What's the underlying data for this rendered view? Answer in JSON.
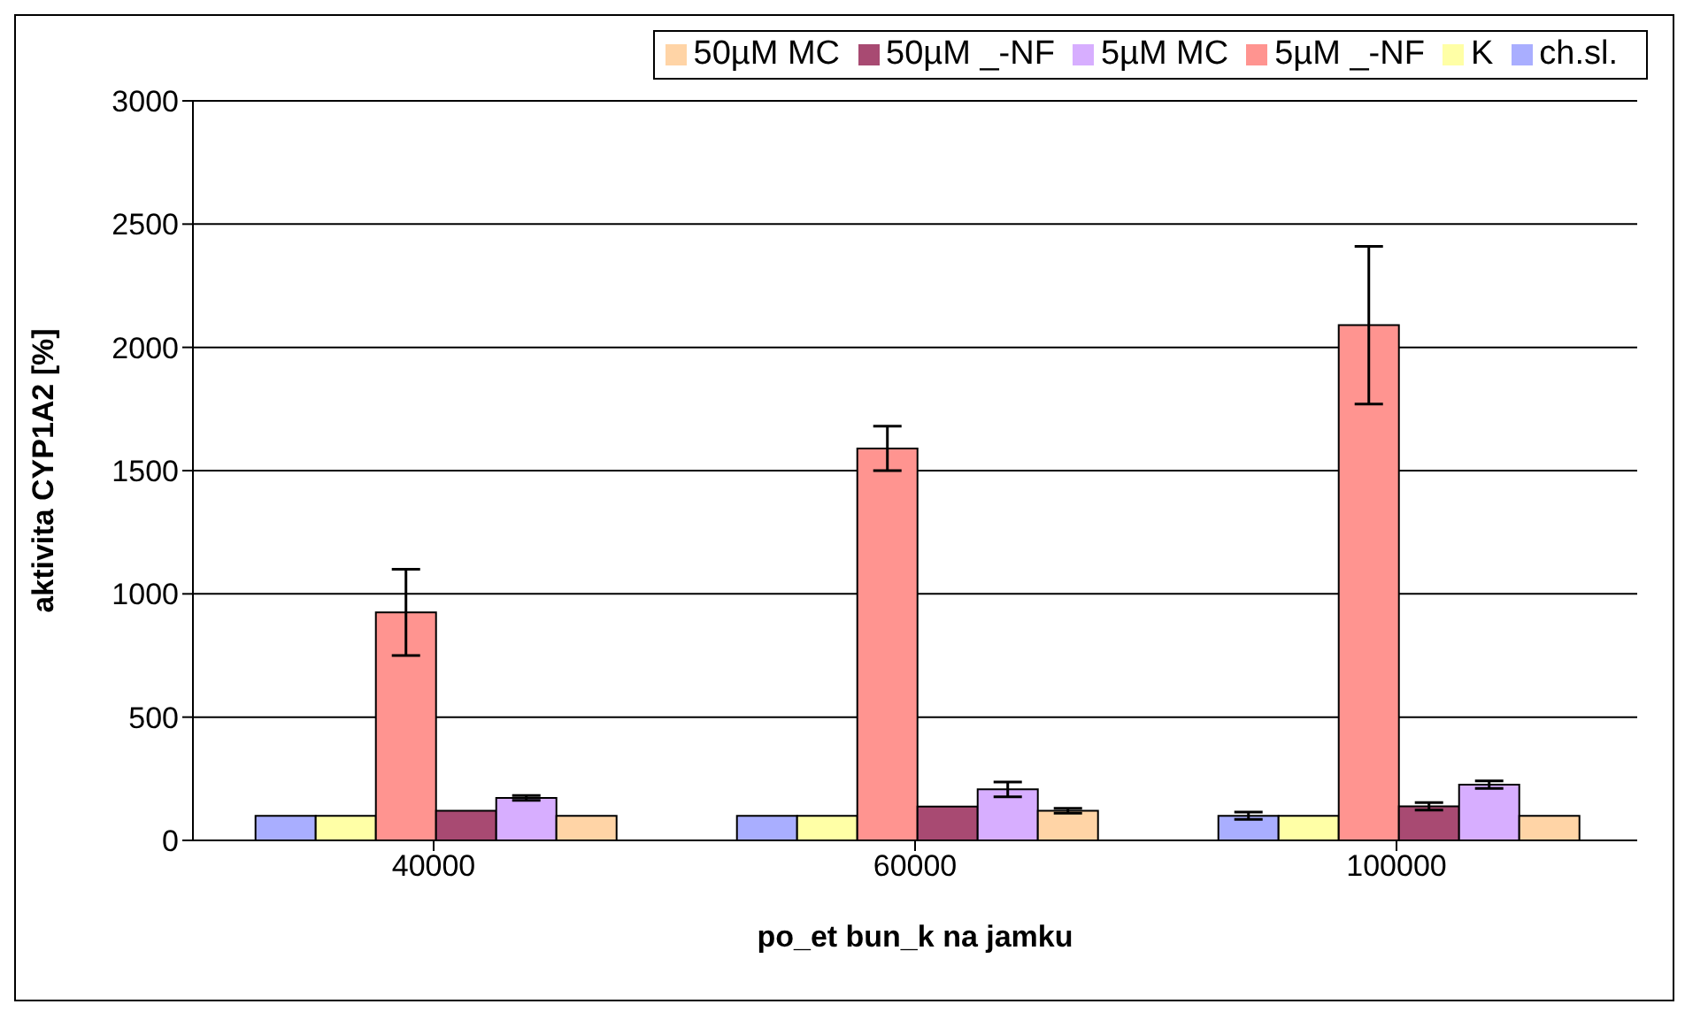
{
  "chart_data": {
    "type": "bar",
    "xlabel": "po_et bun_k na jamku",
    "ylabel": "aktivita CYP1A2 [%]",
    "categories": [
      "40000",
      "60000",
      "100000"
    ],
    "series": [
      {
        "name": "ch.sl.",
        "color": "#a9aeff",
        "values": [
          100,
          100,
          100
        ],
        "errors": [
          null,
          null,
          15
        ]
      },
      {
        "name": "K",
        "color": "#ffffa6",
        "values": [
          100,
          100,
          100
        ]
      },
      {
        "name": "5µM _-NF",
        "color": "#ff9490",
        "values": [
          925,
          1590,
          2090
        ],
        "errors": [
          175,
          90,
          320
        ]
      },
      {
        "name": "50µM _-NF",
        "color": "#a84a72",
        "values": [
          120,
          137,
          138
        ],
        "errors": [
          null,
          null,
          15
        ]
      },
      {
        "name": "5µM MC",
        "color": "#d7aeff",
        "values": [
          172,
          207,
          226
        ],
        "errors": [
          10,
          30,
          15
        ]
      },
      {
        "name": "50µM MC",
        "color": "#ffd4a6",
        "values": [
          100,
          120,
          100
        ],
        "errors": [
          null,
          10,
          null
        ]
      }
    ],
    "ylim": [
      0,
      3000
    ],
    "yticks": [
      0,
      500,
      1000,
      1500,
      2000,
      2500,
      3000
    ],
    "grid": "y",
    "legend": "top"
  }
}
